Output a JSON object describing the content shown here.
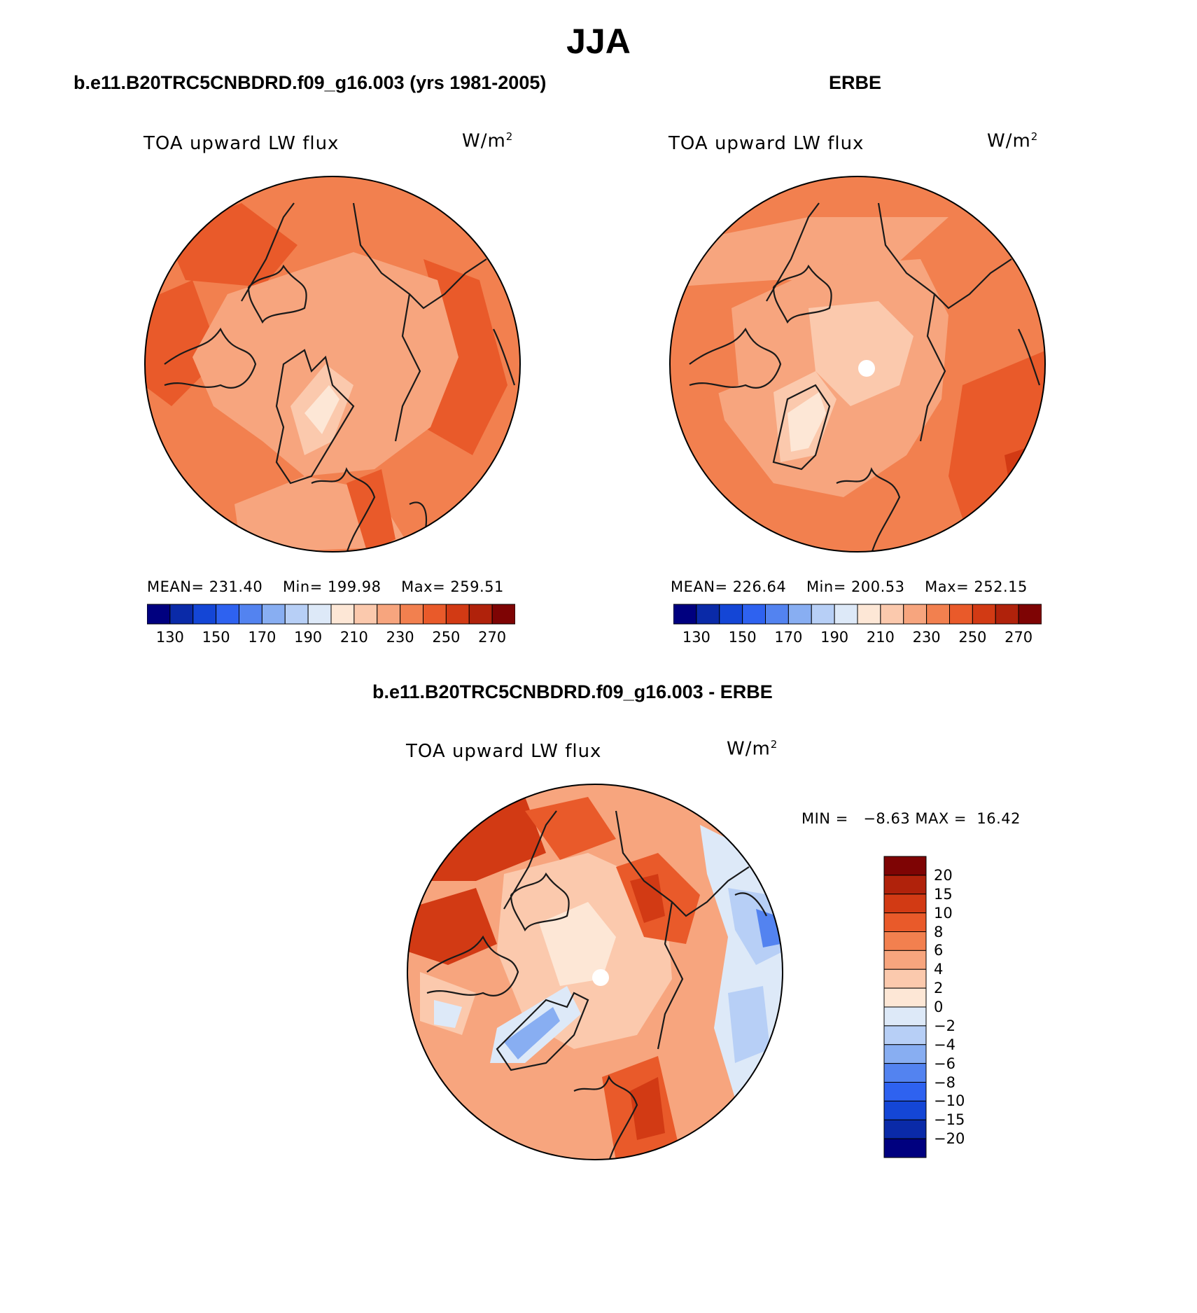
{
  "figure": {
    "title": "JJA",
    "panels": [
      {
        "id": "model",
        "header": "b.e11.B20TRC5CNBDRD.f09_g16.003 (yrs 1981-2005)",
        "variable_label": "TOA upward LW flux",
        "units_base": "W/m",
        "units_exp": "2",
        "stats": {
          "mean_label": "MEAN=",
          "mean": "231.40",
          "min_label": "Min=",
          "min": "199.98",
          "max_label": "Max=",
          "max": "259.51"
        },
        "colorbar_ticks": [
          "130",
          "150",
          "170",
          "190",
          "210",
          "230",
          "250",
          "270"
        ]
      },
      {
        "id": "obs",
        "header": "ERBE",
        "variable_label": "TOA upward LW flux",
        "units_base": "W/m",
        "units_exp": "2",
        "stats": {
          "mean_label": "MEAN=",
          "mean": "226.64",
          "min_label": "Min=",
          "min": "200.53",
          "max_label": "Max=",
          "max": "252.15"
        },
        "colorbar_ticks": [
          "130",
          "150",
          "170",
          "190",
          "210",
          "230",
          "250",
          "270"
        ]
      },
      {
        "id": "diff",
        "header": "b.e11.B20TRC5CNBDRD.f09_g16.003 - ERBE",
        "variable_label": "TOA upward LW flux",
        "units_base": "W/m",
        "units_exp": "2",
        "stats": {
          "min_label": "MIN =",
          "min": "−8.63",
          "max_label": "MAX =",
          "max": "16.42"
        },
        "colorbar_ticks": [
          "20",
          "15",
          "10",
          "8",
          "6",
          "4",
          "2",
          "0",
          "−2",
          "−4",
          "−6",
          "−8",
          "−10",
          "−15",
          "−20"
        ]
      }
    ]
  },
  "colors": {
    "abs_palette": [
      "#00007f",
      "#0a2aa8",
      "#1446d6",
      "#2e62f0",
      "#5383f0",
      "#88aef2",
      "#b7cff6",
      "#dde9f8",
      "#fde7d6",
      "#fbc9ad",
      "#f7a57e",
      "#f2804f",
      "#e95a2a",
      "#d23a14",
      "#b0220b",
      "#7e0404"
    ],
    "diff_palette_top_to_bottom": [
      "#7e0404",
      "#b0220b",
      "#d23a14",
      "#e95a2a",
      "#f2804f",
      "#f7a57e",
      "#fbc9ad",
      "#fde7d6",
      "#dde9f8",
      "#b7cff6",
      "#88aef2",
      "#5383f0",
      "#2e62f0",
      "#1446d6",
      "#0a2aa8",
      "#00007f"
    ]
  },
  "icons": {
    "maps": "north-polar-stereographic-map"
  }
}
